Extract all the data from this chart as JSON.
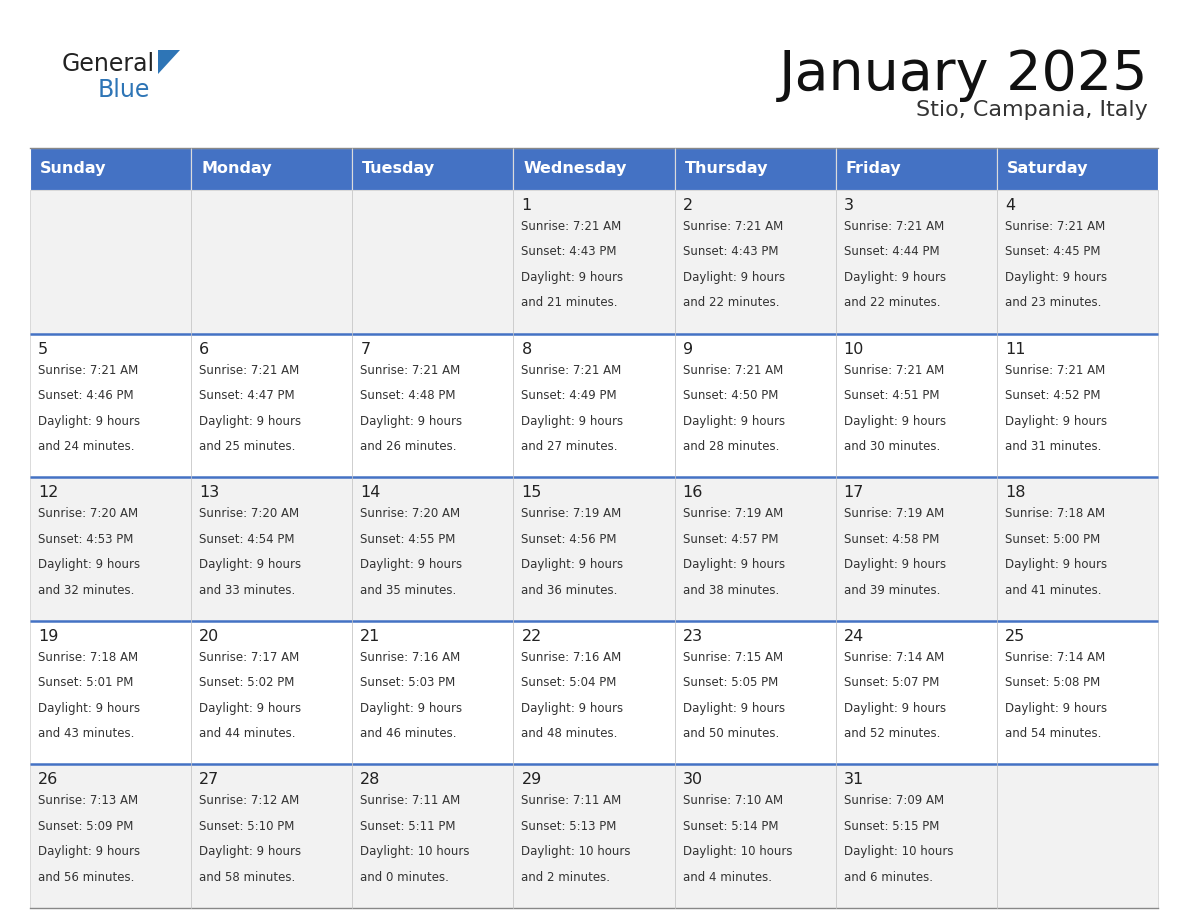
{
  "title": "January 2025",
  "subtitle": "Stio, Campania, Italy",
  "header_color": "#4472C4",
  "header_text_color": "#FFFFFF",
  "cell_bg_even": "#FFFFFF",
  "cell_bg_odd": "#F2F2F2",
  "day_headers": [
    "Sunday",
    "Monday",
    "Tuesday",
    "Wednesday",
    "Thursday",
    "Friday",
    "Saturday"
  ],
  "text_color": "#333333",
  "divider_color": "#4472C4",
  "general_color": "#222222",
  "blue_color": "#2E75B6",
  "days_data": [
    {
      "day": null,
      "sunrise": null,
      "sunset": null,
      "daylight_line1": null,
      "daylight_line2": null
    },
    {
      "day": null,
      "sunrise": null,
      "sunset": null,
      "daylight_line1": null,
      "daylight_line2": null
    },
    {
      "day": null,
      "sunrise": null,
      "sunset": null,
      "daylight_line1": null,
      "daylight_line2": null
    },
    {
      "day": 1,
      "sunrise": "7:21 AM",
      "sunset": "4:43 PM",
      "daylight_line1": "9 hours",
      "daylight_line2": "and 21 minutes."
    },
    {
      "day": 2,
      "sunrise": "7:21 AM",
      "sunset": "4:43 PM",
      "daylight_line1": "9 hours",
      "daylight_line2": "and 22 minutes."
    },
    {
      "day": 3,
      "sunrise": "7:21 AM",
      "sunset": "4:44 PM",
      "daylight_line1": "9 hours",
      "daylight_line2": "and 22 minutes."
    },
    {
      "day": 4,
      "sunrise": "7:21 AM",
      "sunset": "4:45 PM",
      "daylight_line1": "9 hours",
      "daylight_line2": "and 23 minutes."
    },
    {
      "day": 5,
      "sunrise": "7:21 AM",
      "sunset": "4:46 PM",
      "daylight_line1": "9 hours",
      "daylight_line2": "and 24 minutes."
    },
    {
      "day": 6,
      "sunrise": "7:21 AM",
      "sunset": "4:47 PM",
      "daylight_line1": "9 hours",
      "daylight_line2": "and 25 minutes."
    },
    {
      "day": 7,
      "sunrise": "7:21 AM",
      "sunset": "4:48 PM",
      "daylight_line1": "9 hours",
      "daylight_line2": "and 26 minutes."
    },
    {
      "day": 8,
      "sunrise": "7:21 AM",
      "sunset": "4:49 PM",
      "daylight_line1": "9 hours",
      "daylight_line2": "and 27 minutes."
    },
    {
      "day": 9,
      "sunrise": "7:21 AM",
      "sunset": "4:50 PM",
      "daylight_line1": "9 hours",
      "daylight_line2": "and 28 minutes."
    },
    {
      "day": 10,
      "sunrise": "7:21 AM",
      "sunset": "4:51 PM",
      "daylight_line1": "9 hours",
      "daylight_line2": "and 30 minutes."
    },
    {
      "day": 11,
      "sunrise": "7:21 AM",
      "sunset": "4:52 PM",
      "daylight_line1": "9 hours",
      "daylight_line2": "and 31 minutes."
    },
    {
      "day": 12,
      "sunrise": "7:20 AM",
      "sunset": "4:53 PM",
      "daylight_line1": "9 hours",
      "daylight_line2": "and 32 minutes."
    },
    {
      "day": 13,
      "sunrise": "7:20 AM",
      "sunset": "4:54 PM",
      "daylight_line1": "9 hours",
      "daylight_line2": "and 33 minutes."
    },
    {
      "day": 14,
      "sunrise": "7:20 AM",
      "sunset": "4:55 PM",
      "daylight_line1": "9 hours",
      "daylight_line2": "and 35 minutes."
    },
    {
      "day": 15,
      "sunrise": "7:19 AM",
      "sunset": "4:56 PM",
      "daylight_line1": "9 hours",
      "daylight_line2": "and 36 minutes."
    },
    {
      "day": 16,
      "sunrise": "7:19 AM",
      "sunset": "4:57 PM",
      "daylight_line1": "9 hours",
      "daylight_line2": "and 38 minutes."
    },
    {
      "day": 17,
      "sunrise": "7:19 AM",
      "sunset": "4:58 PM",
      "daylight_line1": "9 hours",
      "daylight_line2": "and 39 minutes."
    },
    {
      "day": 18,
      "sunrise": "7:18 AM",
      "sunset": "5:00 PM",
      "daylight_line1": "9 hours",
      "daylight_line2": "and 41 minutes."
    },
    {
      "day": 19,
      "sunrise": "7:18 AM",
      "sunset": "5:01 PM",
      "daylight_line1": "9 hours",
      "daylight_line2": "and 43 minutes."
    },
    {
      "day": 20,
      "sunrise": "7:17 AM",
      "sunset": "5:02 PM",
      "daylight_line1": "9 hours",
      "daylight_line2": "and 44 minutes."
    },
    {
      "day": 21,
      "sunrise": "7:16 AM",
      "sunset": "5:03 PM",
      "daylight_line1": "9 hours",
      "daylight_line2": "and 46 minutes."
    },
    {
      "day": 22,
      "sunrise": "7:16 AM",
      "sunset": "5:04 PM",
      "daylight_line1": "9 hours",
      "daylight_line2": "and 48 minutes."
    },
    {
      "day": 23,
      "sunrise": "7:15 AM",
      "sunset": "5:05 PM",
      "daylight_line1": "9 hours",
      "daylight_line2": "and 50 minutes."
    },
    {
      "day": 24,
      "sunrise": "7:14 AM",
      "sunset": "5:07 PM",
      "daylight_line1": "9 hours",
      "daylight_line2": "and 52 minutes."
    },
    {
      "day": 25,
      "sunrise": "7:14 AM",
      "sunset": "5:08 PM",
      "daylight_line1": "9 hours",
      "daylight_line2": "and 54 minutes."
    },
    {
      "day": 26,
      "sunrise": "7:13 AM",
      "sunset": "5:09 PM",
      "daylight_line1": "9 hours",
      "daylight_line2": "and 56 minutes."
    },
    {
      "day": 27,
      "sunrise": "7:12 AM",
      "sunset": "5:10 PM",
      "daylight_line1": "9 hours",
      "daylight_line2": "and 58 minutes."
    },
    {
      "day": 28,
      "sunrise": "7:11 AM",
      "sunset": "5:11 PM",
      "daylight_line1": "10 hours",
      "daylight_line2": "and 0 minutes."
    },
    {
      "day": 29,
      "sunrise": "7:11 AM",
      "sunset": "5:13 PM",
      "daylight_line1": "10 hours",
      "daylight_line2": "and 2 minutes."
    },
    {
      "day": 30,
      "sunrise": "7:10 AM",
      "sunset": "5:14 PM",
      "daylight_line1": "10 hours",
      "daylight_line2": "and 4 minutes."
    },
    {
      "day": 31,
      "sunrise": "7:09 AM",
      "sunset": "5:15 PM",
      "daylight_line1": "10 hours",
      "daylight_line2": "and 6 minutes."
    },
    {
      "day": null,
      "sunrise": null,
      "sunset": null,
      "daylight_line1": null,
      "daylight_line2": null
    }
  ]
}
